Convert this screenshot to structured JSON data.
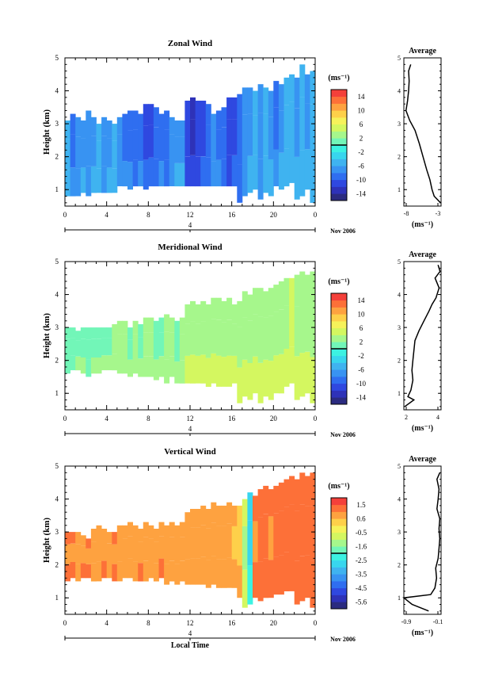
{
  "common": {
    "xticks": [
      "0",
      "4",
      "8",
      "12",
      "16",
      "20",
      "0"
    ],
    "yticks": [
      "1",
      "2",
      "3",
      "4",
      "5"
    ],
    "day_label": "4",
    "month_label": "Nov 2006",
    "ylabel": "Height (km)",
    "cbar_unit": "(ms⁻¹)",
    "avg_title": "Average",
    "avg_xunit": "(ms⁻¹)",
    "xlabel_bottom": "Local Time"
  },
  "panels": [
    {
      "title": "Zonal Wind",
      "cbar_ticks": [
        "14",
        "10",
        "6",
        "2",
        "-2",
        "-6",
        "-10",
        "-14"
      ],
      "avg_xticks": [
        "-8",
        "-3"
      ]
    },
    {
      "title": "Meridional Wind",
      "cbar_ticks": [
        "14",
        "10",
        "6",
        "2",
        "-2",
        "-6",
        "-10",
        "-14"
      ],
      "avg_xticks": [
        "2",
        "4"
      ]
    },
    {
      "title": "Vertical Wind",
      "cbar_ticks": [
        "1.5",
        "0.6",
        "-0.5",
        "-1.6",
        "-2.5",
        "-3.5",
        "-4.5",
        "-5.6"
      ],
      "avg_xticks": [
        "-0.9",
        "-0.1"
      ]
    }
  ],
  "chart_data": [
    {
      "type": "heatmap",
      "title": "Zonal Wind",
      "xlabel": "",
      "ylabel": "Height (km)",
      "x_range_hours": [
        0,
        24
      ],
      "ylim": [
        0.5,
        5
      ],
      "colorbar_range": [
        -16,
        16
      ],
      "colorbar_unit": "ms-1",
      "columns": [
        {
          "t": 0.0,
          "lo": 0.8,
          "hi": 3.1,
          "v": -6
        },
        {
          "t": 0.5,
          "lo": 0.8,
          "hi": 3.3,
          "v": -9
        },
        {
          "t": 1.0,
          "lo": 0.8,
          "hi": 3.2,
          "v": -8
        },
        {
          "t": 1.5,
          "lo": 0.9,
          "hi": 3.1,
          "v": -7
        },
        {
          "t": 2.0,
          "lo": 0.8,
          "hi": 3.4,
          "v": -8
        },
        {
          "t": 2.5,
          "lo": 0.9,
          "hi": 3.2,
          "v": -7
        },
        {
          "t": 3.0,
          "lo": 0.9,
          "hi": 3.0,
          "v": -6
        },
        {
          "t": 3.5,
          "lo": 0.9,
          "hi": 3.2,
          "v": -8
        },
        {
          "t": 4.0,
          "lo": 0.9,
          "hi": 3.1,
          "v": -7
        },
        {
          "t": 4.5,
          "lo": 0.9,
          "hi": 3.0,
          "v": -6
        },
        {
          "t": 5.0,
          "lo": 1.1,
          "hi": 3.2,
          "v": -8
        },
        {
          "t": 5.5,
          "lo": 1.1,
          "hi": 3.3,
          "v": -9
        },
        {
          "t": 6.0,
          "lo": 1.0,
          "hi": 3.4,
          "v": -9
        },
        {
          "t": 6.5,
          "lo": 1.1,
          "hi": 3.4,
          "v": -10
        },
        {
          "t": 7.0,
          "lo": 1.1,
          "hi": 3.3,
          "v": -9
        },
        {
          "t": 7.5,
          "lo": 1.0,
          "hi": 3.6,
          "v": -11
        },
        {
          "t": 8.0,
          "lo": 1.1,
          "hi": 3.6,
          "v": -11
        },
        {
          "t": 8.5,
          "lo": 1.1,
          "hi": 3.5,
          "v": -10
        },
        {
          "t": 9.0,
          "lo": 1.1,
          "hi": 3.3,
          "v": -9
        },
        {
          "t": 9.5,
          "lo": 1.1,
          "hi": 3.4,
          "v": -10
        },
        {
          "t": 10.0,
          "lo": 1.1,
          "hi": 3.2,
          "v": -8
        },
        {
          "t": 10.5,
          "lo": 1.1,
          "hi": 3.1,
          "v": -7
        },
        {
          "t": 11.0,
          "lo": 1.1,
          "hi": 3.1,
          "v": -7
        },
        {
          "t": 11.5,
          "lo": 1.1,
          "hi": 3.7,
          "v": -12
        },
        {
          "t": 12.0,
          "lo": 1.1,
          "hi": 3.8,
          "v": -13
        },
        {
          "t": 12.5,
          "lo": 1.1,
          "hi": 3.7,
          "v": -12
        },
        {
          "t": 13.0,
          "lo": 1.1,
          "hi": 3.7,
          "v": -11
        },
        {
          "t": 13.5,
          "lo": 1.1,
          "hi": 3.6,
          "v": -10
        },
        {
          "t": 14.0,
          "lo": 1.1,
          "hi": 3.3,
          "v": -8
        },
        {
          "t": 14.5,
          "lo": 1.1,
          "hi": 3.4,
          "v": -9
        },
        {
          "t": 15.0,
          "lo": 1.1,
          "hi": 3.5,
          "v": -10
        },
        {
          "t": 15.5,
          "lo": 1.1,
          "hi": 3.8,
          "v": -12
        },
        {
          "t": 16.0,
          "lo": 1.1,
          "hi": 3.8,
          "v": -11
        },
        {
          "t": 16.5,
          "lo": 0.6,
          "hi": 3.9,
          "v": -10
        },
        {
          "t": 17.0,
          "lo": 0.8,
          "hi": 4.1,
          "v": -8
        },
        {
          "t": 17.5,
          "lo": 0.9,
          "hi": 4.1,
          "v": -7
        },
        {
          "t": 18.0,
          "lo": 1.0,
          "hi": 4.0,
          "v": -6
        },
        {
          "t": 18.5,
          "lo": 0.7,
          "hi": 4.2,
          "v": -8
        },
        {
          "t": 19.0,
          "lo": 0.9,
          "hi": 4.1,
          "v": -6
        },
        {
          "t": 19.5,
          "lo": 0.8,
          "hi": 4.0,
          "v": -7
        },
        {
          "t": 20.0,
          "lo": 1.1,
          "hi": 4.3,
          "v": -9
        },
        {
          "t": 20.5,
          "lo": 1.0,
          "hi": 4.2,
          "v": -7
        },
        {
          "t": 21.0,
          "lo": 1.1,
          "hi": 4.4,
          "v": -6
        },
        {
          "t": 21.5,
          "lo": 1.2,
          "hi": 4.5,
          "v": -6
        },
        {
          "t": 22.0,
          "lo": 0.7,
          "hi": 4.4,
          "v": -7
        },
        {
          "t": 22.5,
          "lo": 0.8,
          "hi": 4.8,
          "v": -6
        },
        {
          "t": 23.0,
          "lo": 1.0,
          "hi": 4.5,
          "v": -7
        },
        {
          "t": 23.5,
          "lo": 0.6,
          "hi": 4.6,
          "v": -6
        }
      ],
      "average_profile": {
        "x_range": [
          -8.5,
          -1.5
        ],
        "height": [
          0.6,
          0.8,
          1.0,
          1.3,
          1.6,
          2.0,
          2.4,
          2.8,
          3.1,
          3.4,
          3.7,
          4.0,
          4.3,
          4.6,
          4.8
        ],
        "value": [
          -1.6,
          -2.8,
          -3.2,
          -3.6,
          -4.2,
          -4.9,
          -5.6,
          -6.4,
          -7.4,
          -8.1,
          -7.8,
          -7.6,
          -7.5,
          -7.6,
          -7.2
        ]
      }
    },
    {
      "type": "heatmap",
      "title": "Meridional Wind",
      "xlabel": "",
      "ylabel": "Height (km)",
      "x_range_hours": [
        0,
        24
      ],
      "ylim": [
        0.5,
        5
      ],
      "colorbar_range": [
        -16,
        16
      ],
      "colorbar_unit": "ms-1",
      "columns": [
        {
          "t": 0.0,
          "lo": 1.6,
          "hi": 3.0,
          "v": 0
        },
        {
          "t": 0.5,
          "lo": 1.7,
          "hi": 3.0,
          "v": 0
        },
        {
          "t": 1.0,
          "lo": 1.7,
          "hi": 2.9,
          "v": 1
        },
        {
          "t": 1.5,
          "lo": 1.6,
          "hi": 3.0,
          "v": 1
        },
        {
          "t": 2.0,
          "lo": 1.5,
          "hi": 3.0,
          "v": 0
        },
        {
          "t": 2.5,
          "lo": 1.6,
          "hi": 3.0,
          "v": 1
        },
        {
          "t": 3.0,
          "lo": 1.6,
          "hi": 3.0,
          "v": 1
        },
        {
          "t": 3.5,
          "lo": 1.7,
          "hi": 3.0,
          "v": 1
        },
        {
          "t": 4.0,
          "lo": 1.7,
          "hi": 3.0,
          "v": 1
        },
        {
          "t": 4.5,
          "lo": 1.7,
          "hi": 3.1,
          "v": 2
        },
        {
          "t": 5.0,
          "lo": 1.6,
          "hi": 3.2,
          "v": 2
        },
        {
          "t": 5.5,
          "lo": 1.6,
          "hi": 3.2,
          "v": 2
        },
        {
          "t": 6.0,
          "lo": 1.5,
          "hi": 3.0,
          "v": 1
        },
        {
          "t": 6.5,
          "lo": 1.6,
          "hi": 3.2,
          "v": 2
        },
        {
          "t": 7.0,
          "lo": 1.5,
          "hi": 3.1,
          "v": 1
        },
        {
          "t": 7.5,
          "lo": 1.5,
          "hi": 3.3,
          "v": 2
        },
        {
          "t": 8.0,
          "lo": 1.5,
          "hi": 3.3,
          "v": 2
        },
        {
          "t": 8.5,
          "lo": 1.4,
          "hi": 3.2,
          "v": 1
        },
        {
          "t": 9.0,
          "lo": 1.5,
          "hi": 3.3,
          "v": 1
        },
        {
          "t": 9.5,
          "lo": 1.3,
          "hi": 3.4,
          "v": 2
        },
        {
          "t": 10.0,
          "lo": 1.5,
          "hi": 3.3,
          "v": 2
        },
        {
          "t": 10.5,
          "lo": 1.3,
          "hi": 3.2,
          "v": 1
        },
        {
          "t": 11.0,
          "lo": 1.3,
          "hi": 3.3,
          "v": 2
        },
        {
          "t": 11.5,
          "lo": 1.3,
          "hi": 3.7,
          "v": 3
        },
        {
          "t": 12.0,
          "lo": 1.3,
          "hi": 3.8,
          "v": 3
        },
        {
          "t": 12.5,
          "lo": 1.3,
          "hi": 3.7,
          "v": 3
        },
        {
          "t": 13.0,
          "lo": 1.3,
          "hi": 3.8,
          "v": 3
        },
        {
          "t": 13.5,
          "lo": 1.2,
          "hi": 3.7,
          "v": 3
        },
        {
          "t": 14.0,
          "lo": 1.3,
          "hi": 3.9,
          "v": 3
        },
        {
          "t": 14.5,
          "lo": 1.2,
          "hi": 3.9,
          "v": 3
        },
        {
          "t": 15.0,
          "lo": 1.2,
          "hi": 3.8,
          "v": 3
        },
        {
          "t": 15.5,
          "lo": 1.2,
          "hi": 3.9,
          "v": 3
        },
        {
          "t": 16.0,
          "lo": 1.3,
          "hi": 3.7,
          "v": 3
        },
        {
          "t": 16.5,
          "lo": 0.7,
          "hi": 3.8,
          "v": 3
        },
        {
          "t": 17.0,
          "lo": 0.9,
          "hi": 4.1,
          "v": 3
        },
        {
          "t": 17.5,
          "lo": 0.8,
          "hi": 4.0,
          "v": 3
        },
        {
          "t": 18.0,
          "lo": 1.0,
          "hi": 4.2,
          "v": 3
        },
        {
          "t": 18.5,
          "lo": 0.7,
          "hi": 4.2,
          "v": 3
        },
        {
          "t": 19.0,
          "lo": 0.9,
          "hi": 4.1,
          "v": 3
        },
        {
          "t": 19.5,
          "lo": 0.8,
          "hi": 4.2,
          "v": 3
        },
        {
          "t": 20.0,
          "lo": 1.0,
          "hi": 4.3,
          "v": 3
        },
        {
          "t": 20.5,
          "lo": 1.0,
          "hi": 4.4,
          "v": 3
        },
        {
          "t": 21.0,
          "lo": 1.2,
          "hi": 4.5,
          "v": 3
        },
        {
          "t": 21.5,
          "lo": 1.3,
          "hi": 4.5,
          "v": 4
        },
        {
          "t": 22.0,
          "lo": 0.8,
          "hi": 4.6,
          "v": 3
        },
        {
          "t": 22.5,
          "lo": 0.9,
          "hi": 4.7,
          "v": 3
        },
        {
          "t": 23.0,
          "lo": 1.0,
          "hi": 4.6,
          "v": 3
        },
        {
          "t": 23.5,
          "lo": 0.7,
          "hi": 4.7,
          "v": 3
        }
      ],
      "average_profile": {
        "x_range": [
          0.5,
          4.2
        ],
        "height": [
          0.6,
          0.8,
          0.9,
          1.1,
          1.4,
          1.7,
          2.0,
          2.3,
          2.6,
          2.9,
          3.2,
          3.5,
          3.7,
          3.9,
          4.2,
          4.5,
          4.7,
          4.9
        ],
        "value": [
          0.6,
          1.5,
          0.9,
          1.2,
          1.4,
          1.3,
          1.4,
          1.5,
          1.6,
          2.0,
          2.5,
          3.0,
          3.3,
          3.7,
          4.0,
          3.6,
          4.1,
          3.9
        ]
      }
    },
    {
      "type": "heatmap",
      "title": "Vertical Wind",
      "xlabel": "Local Time",
      "ylabel": "Height (km)",
      "x_range_hours": [
        0,
        24
      ],
      "ylim": [
        0.5,
        5
      ],
      "colorbar_range": [
        -6.0,
        2.0
      ],
      "colorbar_unit": "ms-1",
      "columns": [
        {
          "t": 0.0,
          "lo": 1.5,
          "hi": 3.0,
          "v": 0.8
        },
        {
          "t": 0.5,
          "lo": 1.6,
          "hi": 3.0,
          "v": 0.8
        },
        {
          "t": 1.0,
          "lo": 1.5,
          "hi": 3.0,
          "v": 0.6
        },
        {
          "t": 1.5,
          "lo": 1.6,
          "hi": 2.9,
          "v": 0.7
        },
        {
          "t": 2.0,
          "lo": 1.6,
          "hi": 2.8,
          "v": 0.8
        },
        {
          "t": 2.5,
          "lo": 1.5,
          "hi": 3.1,
          "v": 0.5
        },
        {
          "t": 3.0,
          "lo": 1.5,
          "hi": 3.2,
          "v": 0.6
        },
        {
          "t": 3.5,
          "lo": 1.6,
          "hi": 3.1,
          "v": 0.7
        },
        {
          "t": 4.0,
          "lo": 1.6,
          "hi": 3.0,
          "v": 0.6
        },
        {
          "t": 4.5,
          "lo": 1.5,
          "hi": 3.0,
          "v": 0.8
        },
        {
          "t": 5.0,
          "lo": 1.5,
          "hi": 3.2,
          "v": 0.5
        },
        {
          "t": 5.5,
          "lo": 1.6,
          "hi": 3.2,
          "v": 0.6
        },
        {
          "t": 6.0,
          "lo": 1.6,
          "hi": 3.3,
          "v": 0.5
        },
        {
          "t": 6.5,
          "lo": 1.5,
          "hi": 3.2,
          "v": 0.6
        },
        {
          "t": 7.0,
          "lo": 1.5,
          "hi": 3.1,
          "v": 0.7
        },
        {
          "t": 7.5,
          "lo": 1.5,
          "hi": 3.3,
          "v": 0.6
        },
        {
          "t": 8.0,
          "lo": 1.6,
          "hi": 3.2,
          "v": 0.5
        },
        {
          "t": 8.5,
          "lo": 1.5,
          "hi": 3.1,
          "v": 0.6
        },
        {
          "t": 9.0,
          "lo": 1.6,
          "hi": 3.3,
          "v": 0.7
        },
        {
          "t": 9.5,
          "lo": 1.4,
          "hi": 3.2,
          "v": 0.6
        },
        {
          "t": 10.0,
          "lo": 1.5,
          "hi": 3.3,
          "v": 0.5
        },
        {
          "t": 10.5,
          "lo": 1.4,
          "hi": 3.2,
          "v": 0.6
        },
        {
          "t": 11.0,
          "lo": 1.5,
          "hi": 3.3,
          "v": 0.5
        },
        {
          "t": 11.5,
          "lo": 1.4,
          "hi": 3.6,
          "v": 0.5
        },
        {
          "t": 12.0,
          "lo": 1.4,
          "hi": 3.7,
          "v": 0.6
        },
        {
          "t": 12.5,
          "lo": 1.4,
          "hi": 3.7,
          "v": 0.5
        },
        {
          "t": 13.0,
          "lo": 1.4,
          "hi": 3.8,
          "v": 0.6
        },
        {
          "t": 13.5,
          "lo": 1.3,
          "hi": 3.7,
          "v": 0.5
        },
        {
          "t": 14.0,
          "lo": 1.4,
          "hi": 3.9,
          "v": 0.6
        },
        {
          "t": 14.5,
          "lo": 1.3,
          "hi": 3.8,
          "v": 0.5
        },
        {
          "t": 15.0,
          "lo": 1.3,
          "hi": 3.8,
          "v": 0.6
        },
        {
          "t": 15.5,
          "lo": 1.3,
          "hi": 3.9,
          "v": 0.5
        },
        {
          "t": 16.0,
          "lo": 1.3,
          "hi": 3.8,
          "v": 0.4
        },
        {
          "t": 16.5,
          "lo": 1.0,
          "hi": 3.8,
          "v": 0.2
        },
        {
          "t": 17.0,
          "lo": 0.7,
          "hi": 4.0,
          "v": -1.2
        },
        {
          "t": 17.5,
          "lo": 0.8,
          "hi": 4.2,
          "v": -2.8
        },
        {
          "t": 18.0,
          "lo": 1.0,
          "hi": 4.1,
          "v": 0.8
        },
        {
          "t": 18.5,
          "lo": 0.9,
          "hi": 4.3,
          "v": 1.0
        },
        {
          "t": 19.0,
          "lo": 1.0,
          "hi": 4.4,
          "v": 1.1
        },
        {
          "t": 19.5,
          "lo": 1.0,
          "hi": 4.3,
          "v": 0.9
        },
        {
          "t": 20.0,
          "lo": 1.1,
          "hi": 4.4,
          "v": 1.0
        },
        {
          "t": 20.5,
          "lo": 1.1,
          "hi": 4.5,
          "v": 1.1
        },
        {
          "t": 21.0,
          "lo": 1.2,
          "hi": 4.6,
          "v": 1.0
        },
        {
          "t": 21.5,
          "lo": 1.2,
          "hi": 4.7,
          "v": 1.1
        },
        {
          "t": 22.0,
          "lo": 0.8,
          "hi": 4.6,
          "v": 1.0
        },
        {
          "t": 22.5,
          "lo": 0.9,
          "hi": 4.8,
          "v": 1.1
        },
        {
          "t": 23.0,
          "lo": 1.0,
          "hi": 4.7,
          "v": 1.0
        },
        {
          "t": 23.5,
          "lo": 0.7,
          "hi": 4.8,
          "v": 1.1
        }
      ],
      "average_profile": {
        "x_range": [
          -0.95,
          -0.05
        ],
        "height": [
          0.6,
          0.8,
          1.0,
          1.1,
          1.3,
          1.6,
          1.9,
          2.2,
          2.5,
          2.8,
          3.1,
          3.4,
          3.7,
          4.0,
          4.3,
          4.6,
          4.8
        ],
        "value": [
          -0.35,
          -0.75,
          -0.95,
          -0.3,
          -0.2,
          -0.16,
          -0.18,
          -0.12,
          -0.1,
          -0.08,
          -0.1,
          -0.08,
          -0.15,
          -0.12,
          -0.1,
          -0.15,
          -0.08
        ]
      }
    }
  ]
}
